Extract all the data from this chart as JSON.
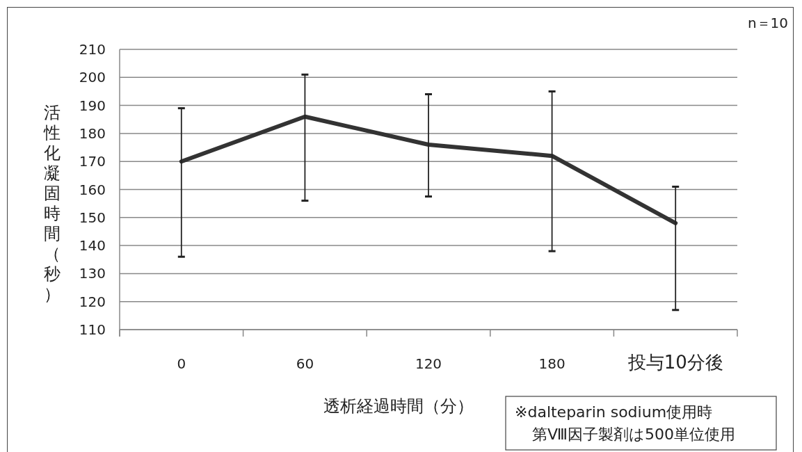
{
  "chart_data": {
    "type": "line",
    "xlabel": "透析経過時間（分）",
    "ylabel": "活性化凝固時間（秒）",
    "categories": [
      "0",
      "60",
      "120",
      "180",
      "投与10分後"
    ],
    "series": [
      {
        "color": "#333333",
        "values": [
          170,
          186,
          176,
          172,
          148
        ],
        "errors": [
          [
            136,
            189
          ],
          [
            156,
            201
          ],
          [
            157.5,
            194
          ],
          [
            138,
            195
          ],
          [
            117,
            161
          ]
        ]
      }
    ],
    "ylim": [
      110,
      210
    ],
    "yticks": [
      110,
      120,
      130,
      140,
      150,
      160,
      170,
      180,
      190,
      200,
      210
    ],
    "grid": "y",
    "marker": "none",
    "line_style": "solid",
    "annotations": [
      "n＝10",
      "※dalteparin sodium使用時",
      "第Ⅷ因子製剤は500単位使用"
    ]
  }
}
